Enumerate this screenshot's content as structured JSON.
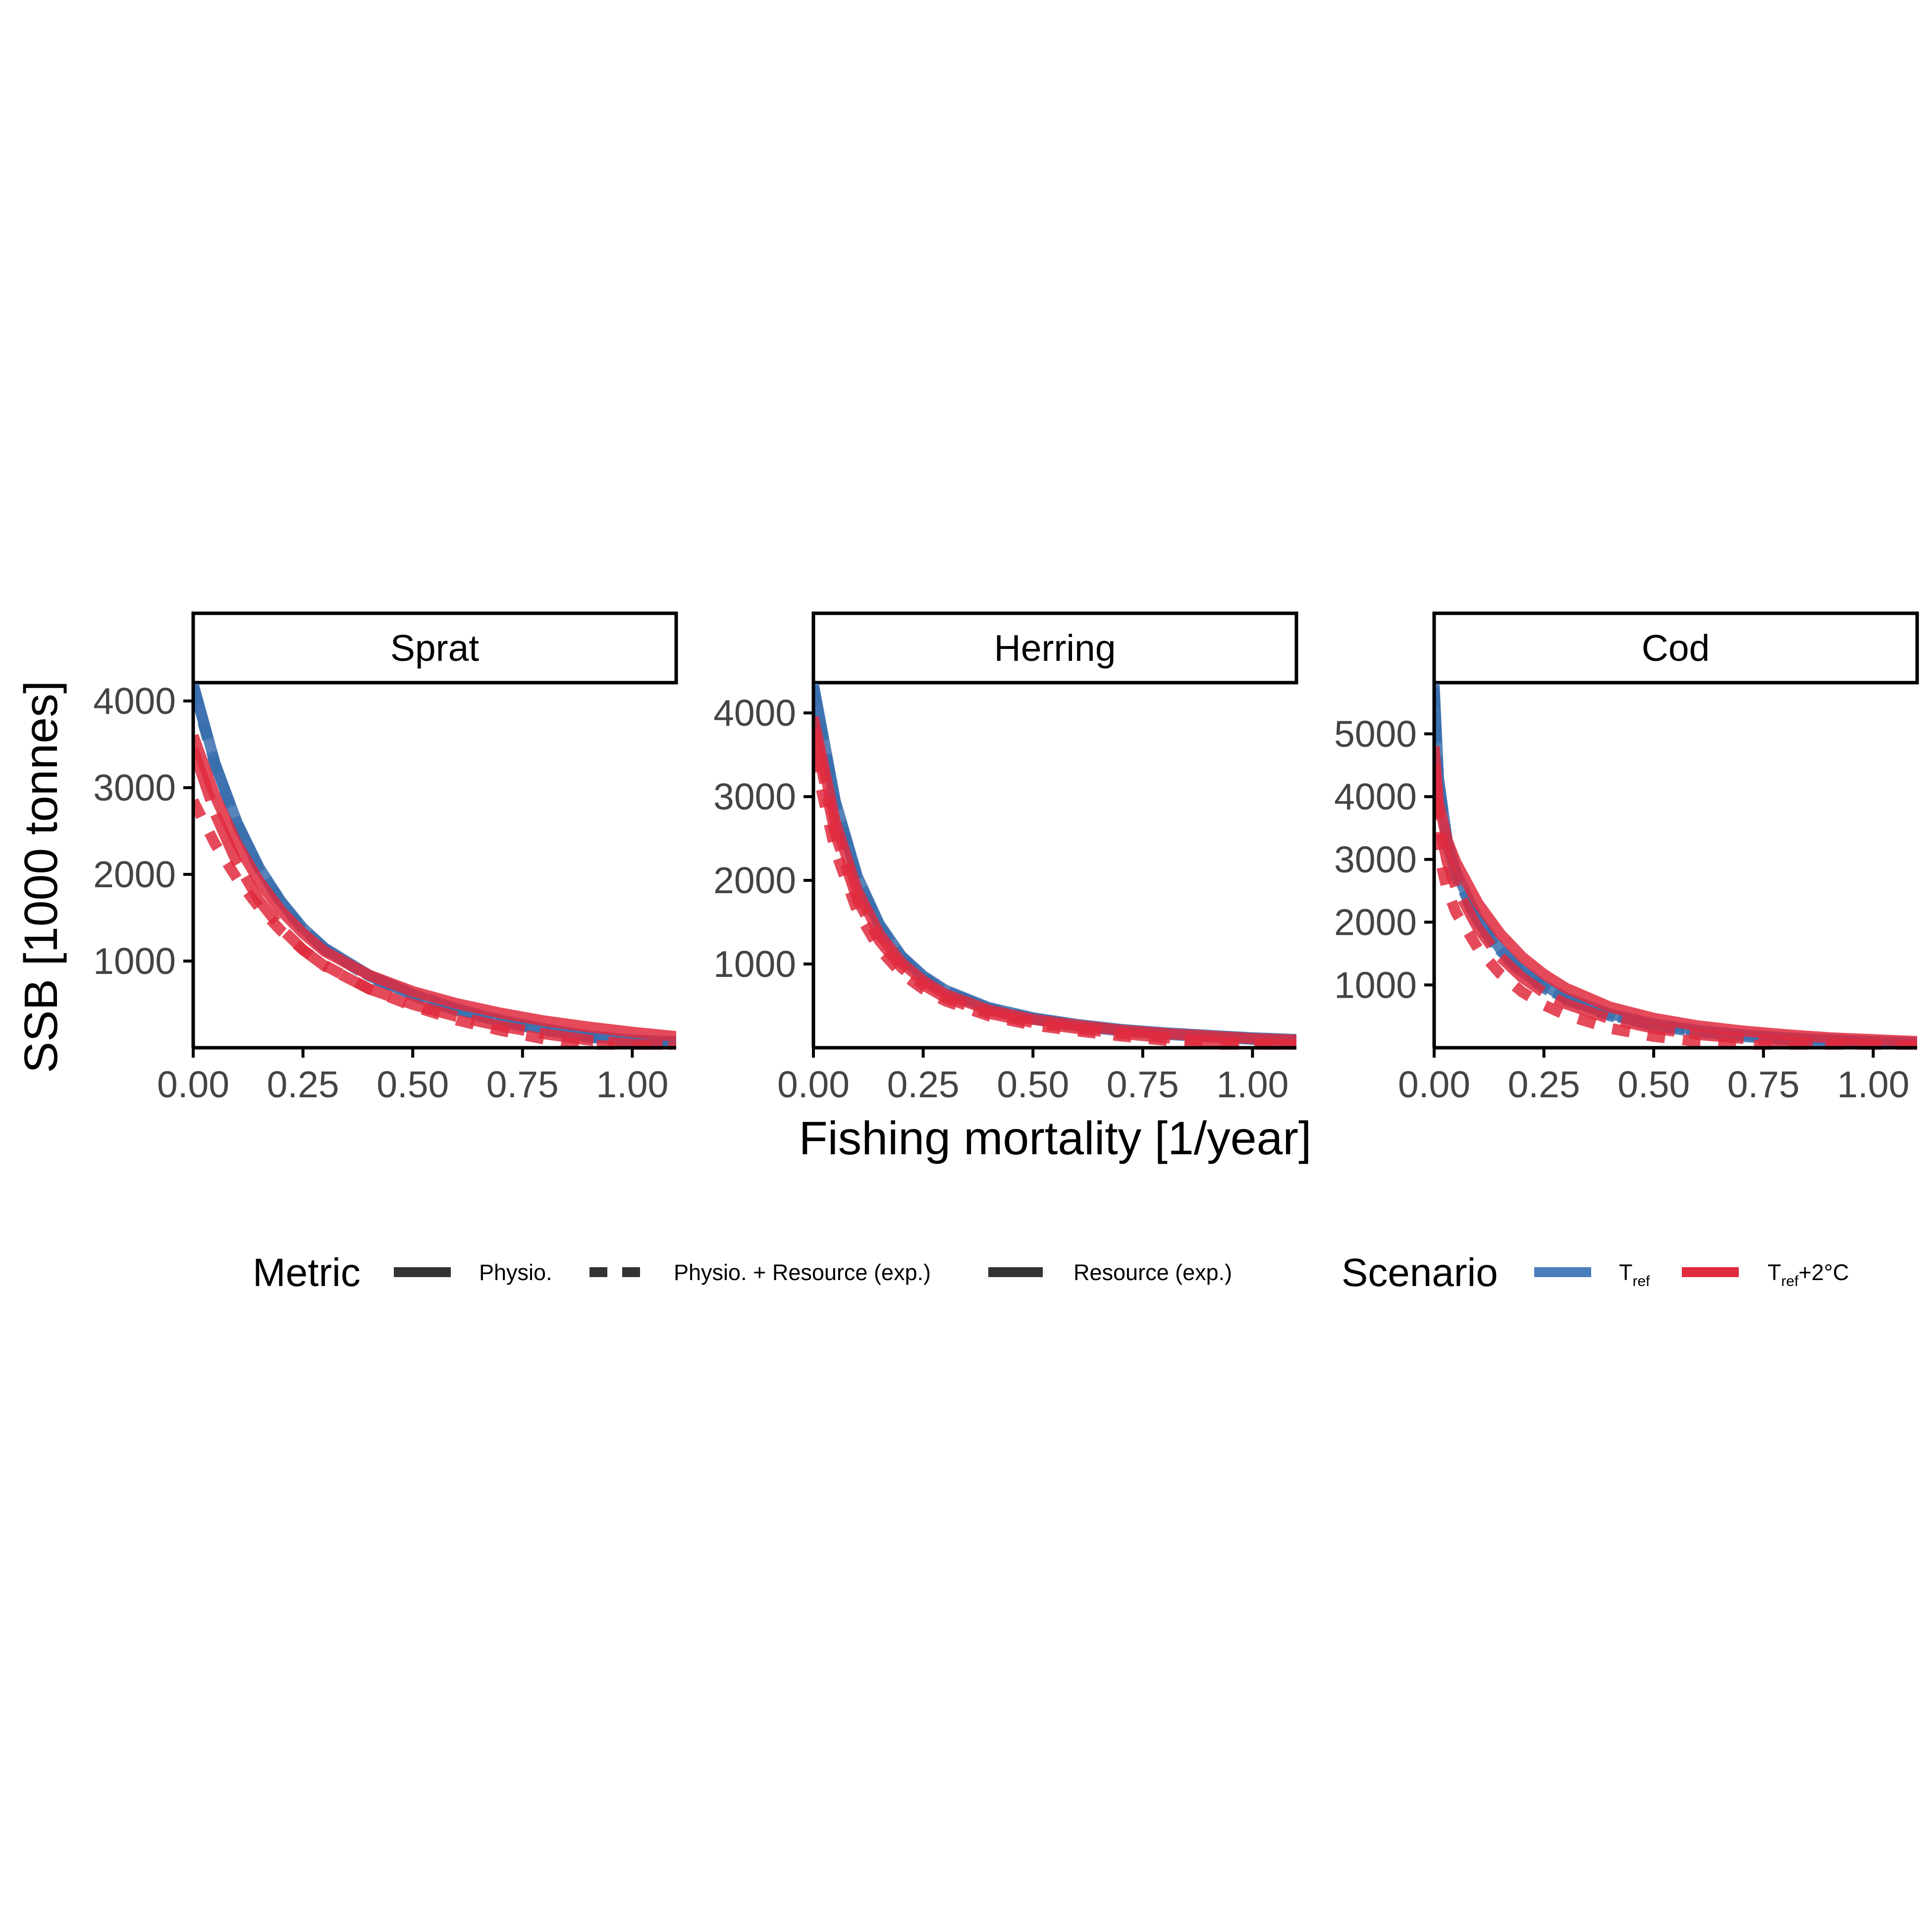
{
  "chart_data": {
    "type": "line",
    "facet_layout": "1x3",
    "xlabel": "Fishing mortality [1/year]",
    "ylabel": "SSB [1000 tonnes]",
    "x_ticks": [
      "0.00",
      "0.25",
      "0.50",
      "0.75",
      "1.00"
    ],
    "xlim": [
      0,
      1.1
    ],
    "grid": false,
    "legend_position": "bottom",
    "legend": {
      "metric": {
        "title": "Metric",
        "items": [
          {
            "label": "Physio.",
            "linetype": "solid"
          },
          {
            "label": "Physio. + Resource (exp.)",
            "linetype": "dashed"
          },
          {
            "label": "Resource (exp.)",
            "linetype": "longdash"
          }
        ]
      },
      "scenario": {
        "title": "Scenario",
        "items": [
          {
            "label_main": "T",
            "label_sub": "ref",
            "label_suffix": "",
            "color": "#4a7fbc"
          },
          {
            "label_main": "T",
            "label_sub": "ref",
            "label_suffix": "+2°C",
            "color": "#e02a3e"
          }
        ]
      }
    },
    "facets": [
      {
        "title": "Sprat",
        "ylim": [
          0,
          4200
        ],
        "y_ticks": [
          "1000",
          "2000",
          "3000",
          "4000"
        ],
        "series": [
          {
            "metric": "Physio.",
            "scenario": "Tref",
            "linetype": "solid",
            "color": "#3a6fae",
            "x": [
              0,
              0.05,
              0.1,
              0.15,
              0.2,
              0.25,
              0.3,
              0.4,
              0.5,
              0.6,
              0.7,
              0.8,
              0.9,
              1.0,
              1.1
            ],
            "y": [
              4200,
              3280,
              2600,
              2080,
              1690,
              1380,
              1150,
              840,
              620,
              450,
              320,
              220,
              140,
              90,
              70
            ]
          },
          {
            "metric": "Physio. + Resource (exp.)",
            "scenario": "Tref",
            "linetype": "dashed",
            "color": "#3a6fae",
            "x": [
              0,
              0.05,
              0.1,
              0.15,
              0.2,
              0.25,
              0.3,
              0.4,
              0.5,
              0.6,
              0.7,
              0.8,
              0.9,
              1.0,
              1.1
            ],
            "y": [
              4150,
              3250,
              2580,
              2060,
              1670,
              1360,
              1130,
              820,
              600,
              430,
              300,
              200,
              120,
              70,
              50
            ]
          },
          {
            "metric": "Resource (exp.)",
            "scenario": "Tref",
            "linetype": "longdash",
            "color": "#3a6fae",
            "x": [
              0,
              0.05,
              0.1,
              0.15,
              0.2,
              0.25,
              0.3,
              0.4,
              0.5,
              0.6,
              0.7,
              0.8,
              0.9,
              1.0,
              1.1
            ],
            "y": [
              4180,
              3270,
              2590,
              2070,
              1680,
              1370,
              1140,
              830,
              610,
              440,
              310,
              210,
              130,
              80,
              60
            ]
          },
          {
            "metric": "Physio.",
            "scenario": "Tref+2°C",
            "linetype": "solid",
            "color": "#e02a3e",
            "x": [
              0,
              0.05,
              0.1,
              0.15,
              0.2,
              0.25,
              0.3,
              0.4,
              0.5,
              0.6,
              0.7,
              0.8,
              0.9,
              1.0,
              1.1
            ],
            "y": [
              3600,
              2900,
              2350,
              1920,
              1580,
              1320,
              1110,
              840,
              650,
              510,
              400,
              310,
              240,
              180,
              130
            ]
          },
          {
            "metric": "Physio. + Resource (exp.)",
            "scenario": "Tref+2°C",
            "linetype": "dashed",
            "color": "#e02a3e",
            "x": [
              0,
              0.05,
              0.1,
              0.15,
              0.2,
              0.25,
              0.3,
              0.4,
              0.5,
              0.6,
              0.7,
              0.8,
              0.9,
              1.0,
              1.1
            ],
            "y": [
              2850,
              2350,
              1950,
              1620,
              1350,
              1130,
              950,
              680,
              480,
              320,
              200,
              100,
              30,
              10,
              5
            ]
          },
          {
            "metric": "Resource (exp.)",
            "scenario": "Tref+2°C",
            "linetype": "longdash",
            "color": "#e02a3e",
            "x": [
              0,
              0.05,
              0.1,
              0.15,
              0.2,
              0.25,
              0.3,
              0.4,
              0.5,
              0.6,
              0.7,
              0.8,
              0.9,
              1.0,
              1.1
            ],
            "y": [
              3450,
              2700,
              2130,
              1700,
              1380,
              1130,
              940,
              680,
              500,
              360,
              250,
              160,
              90,
              40,
              20
            ]
          }
        ]
      },
      {
        "title": "Herring",
        "ylim": [
          0,
          4350
        ],
        "y_ticks": [
          "1000",
          "2000",
          "3000",
          "4000"
        ],
        "series": [
          {
            "metric": "Physio.",
            "scenario": "Tref",
            "linetype": "solid",
            "color": "#3a6fae",
            "x": [
              0,
              0.05,
              0.1,
              0.15,
              0.2,
              0.25,
              0.3,
              0.4,
              0.5,
              0.6,
              0.7,
              0.8,
              0.9,
              1.0,
              1.1
            ],
            "y": [
              4350,
              2950,
              2050,
              1480,
              1100,
              860,
              690,
              480,
              360,
              280,
              220,
              180,
              150,
              120,
              100
            ]
          },
          {
            "metric": "Physio. + Resource (exp.)",
            "scenario": "Tref",
            "linetype": "dashed",
            "color": "#3a6fae",
            "x": [
              0,
              0.05,
              0.1,
              0.15,
              0.2,
              0.25,
              0.3,
              0.4,
              0.5,
              0.6,
              0.7,
              0.8,
              0.9,
              1.0,
              1.1
            ],
            "y": [
              4300,
              2900,
              2010,
              1450,
              1080,
              840,
              670,
              460,
              340,
              260,
              200,
              160,
              130,
              100,
              80
            ]
          },
          {
            "metric": "Resource (exp.)",
            "scenario": "Tref",
            "linetype": "longdash",
            "color": "#3a6fae",
            "x": [
              0,
              0.05,
              0.1,
              0.15,
              0.2,
              0.25,
              0.3,
              0.4,
              0.5,
              0.6,
              0.7,
              0.8,
              0.9,
              1.0,
              1.1
            ],
            "y": [
              4320,
              2920,
              2030,
              1460,
              1090,
              850,
              680,
              470,
              350,
              270,
              210,
              170,
              140,
              110,
              90
            ]
          },
          {
            "metric": "Physio.",
            "scenario": "Tref+2°C",
            "linetype": "solid",
            "color": "#e02a3e",
            "x": [
              0,
              0.05,
              0.1,
              0.15,
              0.2,
              0.25,
              0.3,
              0.4,
              0.5,
              0.6,
              0.7,
              0.8,
              0.9,
              1.0,
              1.1
            ],
            "y": [
              3950,
              2700,
              1880,
              1360,
              1020,
              800,
              640,
              450,
              340,
              270,
              210,
              170,
              140,
              110,
              90
            ]
          },
          {
            "metric": "Physio. + Resource (exp.)",
            "scenario": "Tref+2°C",
            "linetype": "dashed",
            "color": "#e02a3e",
            "x": [
              0,
              0.05,
              0.1,
              0.15,
              0.2,
              0.25,
              0.3,
              0.4,
              0.5,
              0.6,
              0.7,
              0.8,
              0.9,
              1.0,
              1.1
            ],
            "y": [
              3500,
              2350,
              1630,
              1180,
              890,
              700,
              560,
              380,
              270,
              200,
              140,
              90,
              50,
              20,
              10
            ]
          },
          {
            "metric": "Resource (exp.)",
            "scenario": "Tref+2°C",
            "linetype": "longdash",
            "color": "#e02a3e",
            "x": [
              0,
              0.05,
              0.1,
              0.15,
              0.2,
              0.25,
              0.3,
              0.4,
              0.5,
              0.6,
              0.7,
              0.8,
              0.9,
              1.0,
              1.1
            ],
            "y": [
              3800,
              2550,
              1770,
              1280,
              960,
              750,
              600,
              410,
              300,
              230,
              170,
              120,
              80,
              50,
              30
            ]
          }
        ]
      },
      {
        "title": "Cod",
        "ylim": [
          0,
          5800
        ],
        "y_ticks": [
          "1000",
          "2000",
          "3000",
          "4000",
          "5000"
        ],
        "series": [
          {
            "metric": "Physio.",
            "scenario": "Tref",
            "linetype": "solid",
            "color": "#3a6fae",
            "x": [
              0,
              0.01,
              0.03,
              0.05,
              0.1,
              0.15,
              0.2,
              0.25,
              0.3,
              0.4,
              0.5,
              0.6,
              0.7,
              0.8,
              0.9,
              1.0,
              1.1
            ],
            "y": [
              5800,
              4300,
              3300,
              2800,
              2050,
              1580,
              1240,
              990,
              800,
              540,
              380,
              280,
              210,
              160,
              130,
              100,
              80
            ]
          },
          {
            "metric": "Physio. + Resource (exp.)",
            "scenario": "Tref",
            "linetype": "dashed",
            "color": "#3a6fae",
            "x": [
              0,
              0.01,
              0.03,
              0.05,
              0.1,
              0.15,
              0.2,
              0.25,
              0.3,
              0.4,
              0.5,
              0.6,
              0.7,
              0.8,
              0.9,
              1.0,
              1.1
            ],
            "y": [
              5700,
              4200,
              3200,
              2700,
              1980,
              1520,
              1190,
              950,
              760,
              510,
              350,
              250,
              180,
              130,
              100,
              70,
              50
            ]
          },
          {
            "metric": "Resource (exp.)",
            "scenario": "Tref",
            "linetype": "longdash",
            "color": "#3a6fae",
            "x": [
              0,
              0.01,
              0.03,
              0.05,
              0.1,
              0.15,
              0.2,
              0.25,
              0.3,
              0.4,
              0.5,
              0.6,
              0.7,
              0.8,
              0.9,
              1.0,
              1.1
            ],
            "y": [
              5750,
              4250,
              3250,
              2750,
              2010,
              1550,
              1210,
              970,
              780,
              520,
              360,
              260,
              190,
              140,
              110,
              80,
              60
            ]
          },
          {
            "metric": "Physio.",
            "scenario": "Tref+2°C",
            "linetype": "solid",
            "color": "#e02a3e",
            "x": [
              0,
              0.01,
              0.03,
              0.05,
              0.1,
              0.15,
              0.2,
              0.25,
              0.3,
              0.4,
              0.5,
              0.6,
              0.7,
              0.8,
              0.9,
              1.0,
              1.1
            ],
            "y": [
              4800,
              3900,
              3300,
              2950,
              2300,
              1820,
              1450,
              1170,
              950,
              650,
              470,
              350,
              270,
              210,
              160,
              130,
              100
            ]
          },
          {
            "metric": "Physio. + Resource (exp.)",
            "scenario": "Tref+2°C",
            "linetype": "dashed",
            "color": "#e02a3e",
            "x": [
              0,
              0.01,
              0.03,
              0.05,
              0.1,
              0.15,
              0.2,
              0.25,
              0.3,
              0.4,
              0.5,
              0.6,
              0.7,
              0.8,
              0.9,
              1.0,
              1.1
            ],
            "y": [
              4000,
              3100,
              2500,
              2150,
              1580,
              1180,
              890,
              680,
              520,
              310,
              180,
              100,
              50,
              20,
              10,
              5,
              0
            ]
          },
          {
            "metric": "Resource (exp.)",
            "scenario": "Tref+2°C",
            "linetype": "longdash",
            "color": "#e02a3e",
            "x": [
              0,
              0.01,
              0.03,
              0.05,
              0.1,
              0.15,
              0.2,
              0.25,
              0.3,
              0.4,
              0.5,
              0.6,
              0.7,
              0.8,
              0.9,
              1.0,
              1.1
            ],
            "y": [
              4500,
              3600,
              2950,
              2550,
              1900,
              1450,
              1120,
              880,
              700,
              460,
              310,
              210,
              150,
              100,
              70,
              50,
              30
            ]
          }
        ]
      }
    ]
  }
}
